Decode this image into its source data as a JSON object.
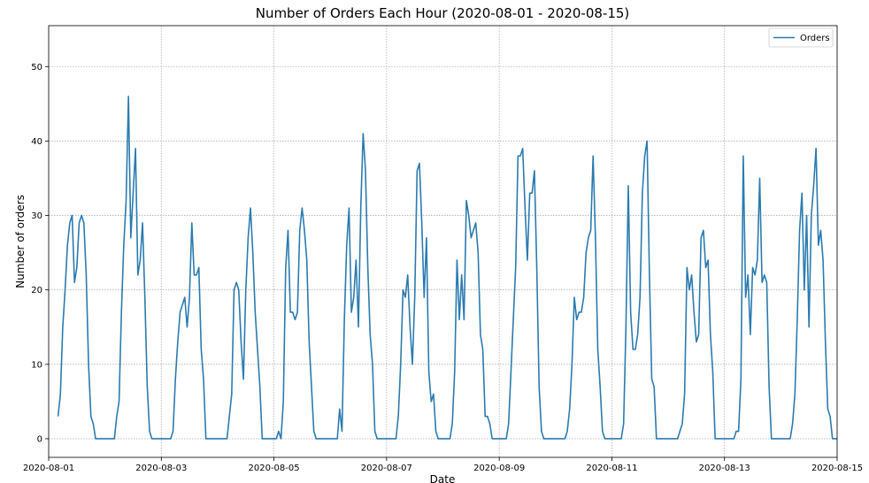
{
  "chart_data": {
    "type": "line",
    "title": "Number of Orders Each Hour (2020-08-01 - 2020-08-15)",
    "xlabel": "Date",
    "ylabel": "Number of orders",
    "xlim": [
      "2020-08-01",
      "2020-08-15"
    ],
    "ylim": [
      -2.5,
      55.5
    ],
    "x_ticks": [
      "2020-08-01",
      "2020-08-03",
      "2020-08-05",
      "2020-08-07",
      "2020-08-09",
      "2020-08-11",
      "2020-08-13",
      "2020-08-15"
    ],
    "y_ticks": [
      0,
      10,
      20,
      30,
      40,
      50
    ],
    "grid": true,
    "legend": "top-right",
    "series": [
      {
        "name": "Orders",
        "color": "#2b7bb0",
        "points": [
          [
            "2020-08-01 04:00",
            3
          ],
          [
            "2020-08-01 05:00",
            6
          ],
          [
            "2020-08-01 06:00",
            15
          ],
          [
            "2020-08-01 07:00",
            20
          ],
          [
            "2020-08-01 08:00",
            26
          ],
          [
            "2020-08-01 09:00",
            29
          ],
          [
            "2020-08-01 10:00",
            30
          ],
          [
            "2020-08-01 11:00",
            21
          ],
          [
            "2020-08-01 12:00",
            23
          ],
          [
            "2020-08-01 13:00",
            29
          ],
          [
            "2020-08-01 14:00",
            30
          ],
          [
            "2020-08-01 15:00",
            29
          ],
          [
            "2020-08-01 16:00",
            22
          ],
          [
            "2020-08-01 17:00",
            10
          ],
          [
            "2020-08-01 18:00",
            3
          ],
          [
            "2020-08-01 19:00",
            2
          ],
          [
            "2020-08-01 20:00",
            0
          ],
          [
            "2020-08-02 04:00",
            0
          ],
          [
            "2020-08-02 05:00",
            3
          ],
          [
            "2020-08-02 06:00",
            5
          ],
          [
            "2020-08-02 07:00",
            17
          ],
          [
            "2020-08-02 08:00",
            26
          ],
          [
            "2020-08-02 09:00",
            32
          ],
          [
            "2020-08-02 10:00",
            46
          ],
          [
            "2020-08-02 11:00",
            27
          ],
          [
            "2020-08-02 12:00",
            33
          ],
          [
            "2020-08-02 13:00",
            39
          ],
          [
            "2020-08-02 14:00",
            22
          ],
          [
            "2020-08-02 15:00",
            24
          ],
          [
            "2020-08-02 16:00",
            29
          ],
          [
            "2020-08-02 17:00",
            19
          ],
          [
            "2020-08-02 18:00",
            7
          ],
          [
            "2020-08-02 19:00",
            1
          ],
          [
            "2020-08-02 20:00",
            0
          ],
          [
            "2020-08-03 04:00",
            0
          ],
          [
            "2020-08-03 05:00",
            1
          ],
          [
            "2020-08-03 06:00",
            8
          ],
          [
            "2020-08-03 07:00",
            13
          ],
          [
            "2020-08-03 08:00",
            17
          ],
          [
            "2020-08-03 09:00",
            18
          ],
          [
            "2020-08-03 10:00",
            19
          ],
          [
            "2020-08-03 11:00",
            15
          ],
          [
            "2020-08-03 12:00",
            19
          ],
          [
            "2020-08-03 13:00",
            29
          ],
          [
            "2020-08-03 14:00",
            22
          ],
          [
            "2020-08-03 15:00",
            22
          ],
          [
            "2020-08-03 16:00",
            23
          ],
          [
            "2020-08-03 17:00",
            12
          ],
          [
            "2020-08-03 18:00",
            8
          ],
          [
            "2020-08-03 19:00",
            0
          ],
          [
            "2020-08-04 04:00",
            0
          ],
          [
            "2020-08-04 05:00",
            3
          ],
          [
            "2020-08-04 06:00",
            6
          ],
          [
            "2020-08-04 07:00",
            20
          ],
          [
            "2020-08-04 08:00",
            21
          ],
          [
            "2020-08-04 09:00",
            20
          ],
          [
            "2020-08-04 10:00",
            13
          ],
          [
            "2020-08-04 11:00",
            8
          ],
          [
            "2020-08-04 12:00",
            20
          ],
          [
            "2020-08-04 13:00",
            27
          ],
          [
            "2020-08-04 14:00",
            31
          ],
          [
            "2020-08-04 15:00",
            25
          ],
          [
            "2020-08-04 16:00",
            17
          ],
          [
            "2020-08-04 17:00",
            12
          ],
          [
            "2020-08-04 18:00",
            7
          ],
          [
            "2020-08-04 19:00",
            0
          ],
          [
            "2020-08-05 01:00",
            0
          ],
          [
            "2020-08-05 02:00",
            1
          ],
          [
            "2020-08-05 03:00",
            0
          ],
          [
            "2020-08-05 04:00",
            5
          ],
          [
            "2020-08-05 05:00",
            23
          ],
          [
            "2020-08-05 06:00",
            28
          ],
          [
            "2020-08-05 07:00",
            17
          ],
          [
            "2020-08-05 08:00",
            17
          ],
          [
            "2020-08-05 09:00",
            16
          ],
          [
            "2020-08-05 10:00",
            17
          ],
          [
            "2020-08-05 11:00",
            28
          ],
          [
            "2020-08-05 12:00",
            31
          ],
          [
            "2020-08-05 13:00",
            28
          ],
          [
            "2020-08-05 14:00",
            24
          ],
          [
            "2020-08-05 15:00",
            13
          ],
          [
            "2020-08-05 16:00",
            7
          ],
          [
            "2020-08-05 17:00",
            1
          ],
          [
            "2020-08-05 18:00",
            0
          ],
          [
            "2020-08-06 03:00",
            0
          ],
          [
            "2020-08-06 04:00",
            4
          ],
          [
            "2020-08-06 05:00",
            1
          ],
          [
            "2020-08-06 06:00",
            16
          ],
          [
            "2020-08-06 07:00",
            26
          ],
          [
            "2020-08-06 08:00",
            31
          ],
          [
            "2020-08-06 09:00",
            17
          ],
          [
            "2020-08-06 10:00",
            19
          ],
          [
            "2020-08-06 11:00",
            24
          ],
          [
            "2020-08-06 12:00",
            15
          ],
          [
            "2020-08-06 13:00",
            31
          ],
          [
            "2020-08-06 14:00",
            41
          ],
          [
            "2020-08-06 15:00",
            36
          ],
          [
            "2020-08-06 16:00",
            23
          ],
          [
            "2020-08-06 17:00",
            14
          ],
          [
            "2020-08-06 18:00",
            10
          ],
          [
            "2020-08-06 19:00",
            1
          ],
          [
            "2020-08-06 20:00",
            0
          ],
          [
            "2020-08-07 04:00",
            0
          ],
          [
            "2020-08-07 05:00",
            3
          ],
          [
            "2020-08-07 06:00",
            10
          ],
          [
            "2020-08-07 07:00",
            20
          ],
          [
            "2020-08-07 08:00",
            19
          ],
          [
            "2020-08-07 09:00",
            22
          ],
          [
            "2020-08-07 10:00",
            15
          ],
          [
            "2020-08-07 11:00",
            10
          ],
          [
            "2020-08-07 12:00",
            19
          ],
          [
            "2020-08-07 13:00",
            36
          ],
          [
            "2020-08-07 14:00",
            37
          ],
          [
            "2020-08-07 15:00",
            29
          ],
          [
            "2020-08-07 16:00",
            19
          ],
          [
            "2020-08-07 17:00",
            27
          ],
          [
            "2020-08-07 18:00",
            9
          ],
          [
            "2020-08-07 19:00",
            5
          ],
          [
            "2020-08-07 20:00",
            6
          ],
          [
            "2020-08-07 21:00",
            1
          ],
          [
            "2020-08-07 22:00",
            0
          ],
          [
            "2020-08-08 03:00",
            0
          ],
          [
            "2020-08-08 04:00",
            2
          ],
          [
            "2020-08-08 05:00",
            9
          ],
          [
            "2020-08-08 06:00",
            24
          ],
          [
            "2020-08-08 07:00",
            16
          ],
          [
            "2020-08-08 08:00",
            22
          ],
          [
            "2020-08-08 09:00",
            16
          ],
          [
            "2020-08-08 10:00",
            32
          ],
          [
            "2020-08-08 11:00",
            30
          ],
          [
            "2020-08-08 12:00",
            27
          ],
          [
            "2020-08-08 13:00",
            28
          ],
          [
            "2020-08-08 14:00",
            29
          ],
          [
            "2020-08-08 15:00",
            25
          ],
          [
            "2020-08-08 16:00",
            14
          ],
          [
            "2020-08-08 17:00",
            12
          ],
          [
            "2020-08-08 18:00",
            3
          ],
          [
            "2020-08-08 19:00",
            3
          ],
          [
            "2020-08-08 20:00",
            2
          ],
          [
            "2020-08-08 21:00",
            0
          ],
          [
            "2020-08-09 03:00",
            0
          ],
          [
            "2020-08-09 04:00",
            2
          ],
          [
            "2020-08-09 05:00",
            9
          ],
          [
            "2020-08-09 06:00",
            16
          ],
          [
            "2020-08-09 07:00",
            23
          ],
          [
            "2020-08-09 08:00",
            38
          ],
          [
            "2020-08-09 09:00",
            38
          ],
          [
            "2020-08-09 10:00",
            39
          ],
          [
            "2020-08-09 11:00",
            31
          ],
          [
            "2020-08-09 12:00",
            24
          ],
          [
            "2020-08-09 13:00",
            33
          ],
          [
            "2020-08-09 14:00",
            33
          ],
          [
            "2020-08-09 15:00",
            36
          ],
          [
            "2020-08-09 16:00",
            23
          ],
          [
            "2020-08-09 17:00",
            7
          ],
          [
            "2020-08-09 18:00",
            1
          ],
          [
            "2020-08-09 19:00",
            0
          ],
          [
            "2020-08-10 04:00",
            0
          ],
          [
            "2020-08-10 05:00",
            1
          ],
          [
            "2020-08-10 06:00",
            4
          ],
          [
            "2020-08-10 07:00",
            10
          ],
          [
            "2020-08-10 08:00",
            19
          ],
          [
            "2020-08-10 09:00",
            16
          ],
          [
            "2020-08-10 10:00",
            17
          ],
          [
            "2020-08-10 11:00",
            17
          ],
          [
            "2020-08-10 12:00",
            19
          ],
          [
            "2020-08-10 13:00",
            25
          ],
          [
            "2020-08-10 14:00",
            27
          ],
          [
            "2020-08-10 15:00",
            28
          ],
          [
            "2020-08-10 16:00",
            38
          ],
          [
            "2020-08-10 17:00",
            27
          ],
          [
            "2020-08-10 18:00",
            12
          ],
          [
            "2020-08-10 19:00",
            7
          ],
          [
            "2020-08-10 20:00",
            1
          ],
          [
            "2020-08-10 21:00",
            0
          ],
          [
            "2020-08-11 04:00",
            0
          ],
          [
            "2020-08-11 05:00",
            2
          ],
          [
            "2020-08-11 06:00",
            15
          ],
          [
            "2020-08-11 07:00",
            34
          ],
          [
            "2020-08-11 08:00",
            17
          ],
          [
            "2020-08-11 09:00",
            12
          ],
          [
            "2020-08-11 10:00",
            12
          ],
          [
            "2020-08-11 11:00",
            14
          ],
          [
            "2020-08-11 12:00",
            19
          ],
          [
            "2020-08-11 13:00",
            33
          ],
          [
            "2020-08-11 14:00",
            38
          ],
          [
            "2020-08-11 15:00",
            40
          ],
          [
            "2020-08-11 16:00",
            22
          ],
          [
            "2020-08-11 17:00",
            8
          ],
          [
            "2020-08-11 18:00",
            7
          ],
          [
            "2020-08-11 19:00",
            0
          ],
          [
            "2020-08-12 04:00",
            0
          ],
          [
            "2020-08-12 05:00",
            1
          ],
          [
            "2020-08-12 06:00",
            2
          ],
          [
            "2020-08-12 07:00",
            6
          ],
          [
            "2020-08-12 08:00",
            23
          ],
          [
            "2020-08-12 09:00",
            20
          ],
          [
            "2020-08-12 10:00",
            22
          ],
          [
            "2020-08-12 11:00",
            17
          ],
          [
            "2020-08-12 12:00",
            13
          ],
          [
            "2020-08-12 13:00",
            14
          ],
          [
            "2020-08-12 14:00",
            27
          ],
          [
            "2020-08-12 15:00",
            28
          ],
          [
            "2020-08-12 16:00",
            23
          ],
          [
            "2020-08-12 17:00",
            24
          ],
          [
            "2020-08-12 18:00",
            14
          ],
          [
            "2020-08-12 19:00",
            9
          ],
          [
            "2020-08-12 20:00",
            0
          ],
          [
            "2020-08-13 04:00",
            0
          ],
          [
            "2020-08-13 05:00",
            1
          ],
          [
            "2020-08-13 06:00",
            1
          ],
          [
            "2020-08-13 07:00",
            8
          ],
          [
            "2020-08-13 08:00",
            38
          ],
          [
            "2020-08-13 09:00",
            19
          ],
          [
            "2020-08-13 10:00",
            22
          ],
          [
            "2020-08-13 11:00",
            14
          ],
          [
            "2020-08-13 12:00",
            23
          ],
          [
            "2020-08-13 13:00",
            22
          ],
          [
            "2020-08-13 14:00",
            24
          ],
          [
            "2020-08-13 15:00",
            35
          ],
          [
            "2020-08-13 16:00",
            21
          ],
          [
            "2020-08-13 17:00",
            22
          ],
          [
            "2020-08-13 18:00",
            21
          ],
          [
            "2020-08-13 19:00",
            7
          ],
          [
            "2020-08-13 20:00",
            0
          ],
          [
            "2020-08-14 04:00",
            0
          ],
          [
            "2020-08-14 05:00",
            2
          ],
          [
            "2020-08-14 06:00",
            6
          ],
          [
            "2020-08-14 07:00",
            16
          ],
          [
            "2020-08-14 08:00",
            28
          ],
          [
            "2020-08-14 09:00",
            33
          ],
          [
            "2020-08-14 10:00",
            20
          ],
          [
            "2020-08-14 11:00",
            30
          ],
          [
            "2020-08-14 12:00",
            15
          ],
          [
            "2020-08-14 13:00",
            30
          ],
          [
            "2020-08-14 14:00",
            34
          ],
          [
            "2020-08-14 15:00",
            39
          ],
          [
            "2020-08-14 16:00",
            26
          ],
          [
            "2020-08-14 17:00",
            28
          ],
          [
            "2020-08-14 18:00",
            24
          ],
          [
            "2020-08-14 19:00",
            13
          ],
          [
            "2020-08-14 20:00",
            4
          ],
          [
            "2020-08-14 21:00",
            3
          ],
          [
            "2020-08-14 22:00",
            0
          ],
          [
            "2020-08-15 00:00",
            0
          ]
        ]
      }
    ]
  }
}
